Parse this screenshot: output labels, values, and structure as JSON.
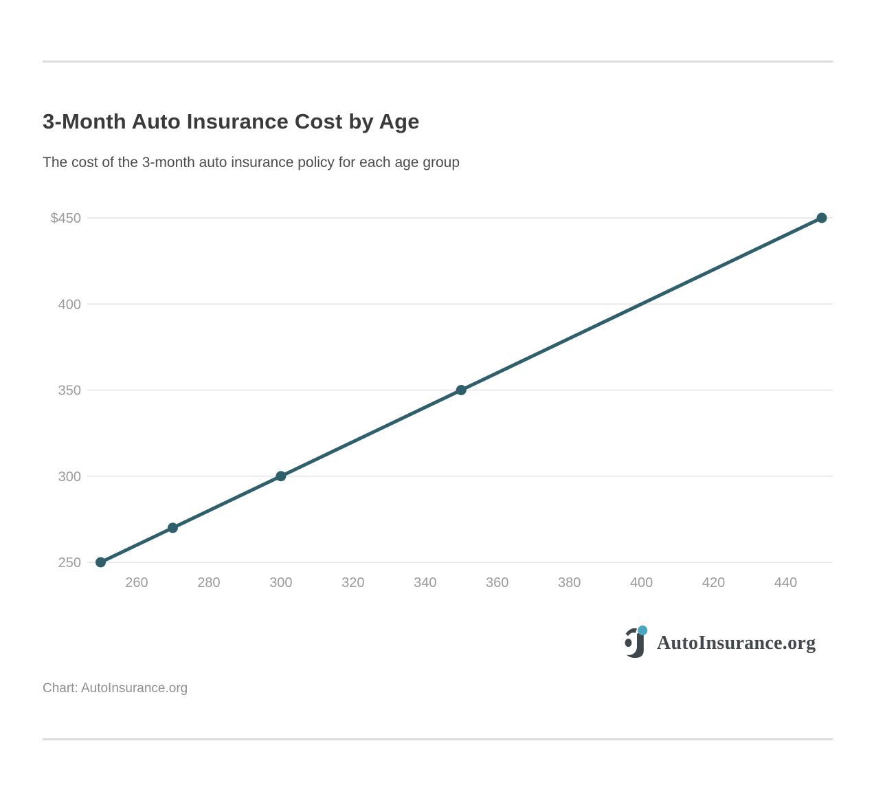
{
  "page": {
    "title": "3-Month Auto Insurance Cost by Age",
    "subtitle": "The cost of the 3-month auto insurance policy for each age group",
    "credit": "Chart: AutoInsurance.org",
    "logo_text": "AutoInsurance.org"
  },
  "colors": {
    "line": "#2f5f6b",
    "marker": "#2f5f6b",
    "grid": "#e3e3e3",
    "axis_label": "#9b9b9b",
    "title": "#3a3a3a",
    "subtitle": "#4c4c4c",
    "divider": "#dcdcdc",
    "credit": "#8e8e8e",
    "logo_text": "#43484c",
    "logo_mark": "#3f464c",
    "logo_dot": "#4aa5c0"
  },
  "chart_data": {
    "type": "line",
    "title": "3-Month Auto Insurance Cost by Age",
    "subtitle": "The cost of the 3-month auto insurance policy for each age group",
    "x": [
      250,
      270,
      300,
      350,
      450
    ],
    "y": [
      250,
      270,
      300,
      350,
      450
    ],
    "xlabel": "",
    "ylabel": "",
    "x_ticks": [
      260,
      280,
      300,
      320,
      340,
      360,
      380,
      400,
      420,
      440
    ],
    "y_ticks": [
      250,
      300,
      350,
      400,
      450
    ],
    "y_tick_labels": [
      "250",
      "300",
      "350",
      "400",
      "$450"
    ],
    "xlim": [
      246.5,
      453
    ],
    "ylim": [
      250,
      450
    ],
    "grid": "horizontal-only",
    "legend": false,
    "marker": "circle",
    "source": "AutoInsurance.org"
  }
}
